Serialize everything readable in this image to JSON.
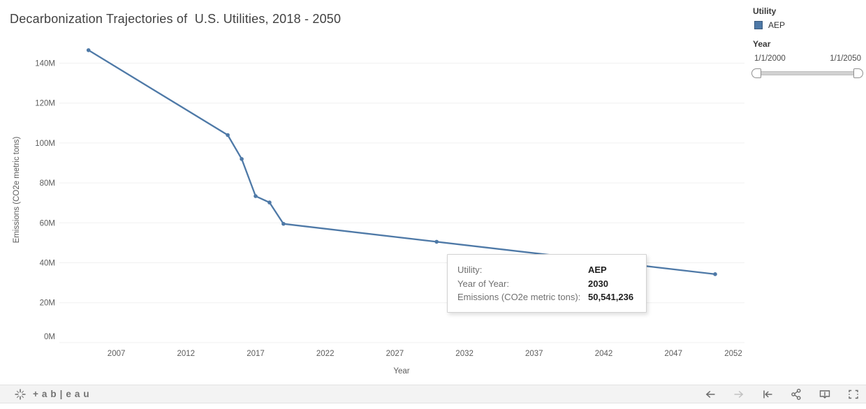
{
  "title": "Decarbonization Trajectories of  U.S. Utilities, 2018 - 2050",
  "chart_data": {
    "type": "line",
    "title": "Decarbonization Trajectories of  U.S. Utilities, 2018 - 2050",
    "xlabel": "Year",
    "ylabel": "Emissions (CO2e metric tons)",
    "xlim": [
      2003,
      2053
    ],
    "ylim": [
      0,
      150000000
    ],
    "grid": "horizontal-only",
    "legend_position": "top-right",
    "x_ticks": [
      2007,
      2012,
      2017,
      2022,
      2027,
      2032,
      2037,
      2042,
      2047,
      2052
    ],
    "y_ticks": [
      {
        "value": 0,
        "label": "0M"
      },
      {
        "value": 20000000,
        "label": "20M"
      },
      {
        "value": 40000000,
        "label": "40M"
      },
      {
        "value": 60000000,
        "label": "60M"
      },
      {
        "value": 80000000,
        "label": "80M"
      },
      {
        "value": 100000000,
        "label": "100M"
      },
      {
        "value": 120000000,
        "label": "120M"
      },
      {
        "value": 140000000,
        "label": "140M"
      }
    ],
    "series": [
      {
        "name": "AEP",
        "color": "#4e79a7",
        "points": [
          {
            "year": 2005,
            "value": 146500000
          },
          {
            "year": 2015,
            "value": 104000000
          },
          {
            "year": 2016,
            "value": 92000000
          },
          {
            "year": 2017,
            "value": 73400000
          },
          {
            "year": 2018,
            "value": 70200000
          },
          {
            "year": 2019,
            "value": 59500000
          },
          {
            "year": 2030,
            "value": 50541236
          },
          {
            "year": 2050,
            "value": 34300000
          }
        ]
      }
    ]
  },
  "tooltip": {
    "rows": [
      {
        "label": "Utility:",
        "value": "AEP"
      },
      {
        "label": "Year of Year:",
        "value": "2030"
      },
      {
        "label": "Emissions (CO2e metric tons):",
        "value": "50,541,236"
      }
    ]
  },
  "legend": {
    "title": "Utility",
    "items": [
      {
        "label": "AEP",
        "color": "#4e79a7"
      }
    ]
  },
  "year_filter": {
    "title": "Year",
    "min_label": "1/1/2000",
    "max_label": "1/1/2050"
  },
  "toolbar": {
    "wordmark": "+ab|eau",
    "buttons": [
      "undo",
      "redo",
      "replay",
      "share",
      "download",
      "fullscreen"
    ]
  },
  "colors": {
    "accent": "#4e79a7",
    "grid": "#f0f0f0",
    "axis_text": "#5c5c5c",
    "title_text": "#414141",
    "tooltip_label": "#707070",
    "tooltip_value": "#1e1e1e"
  }
}
